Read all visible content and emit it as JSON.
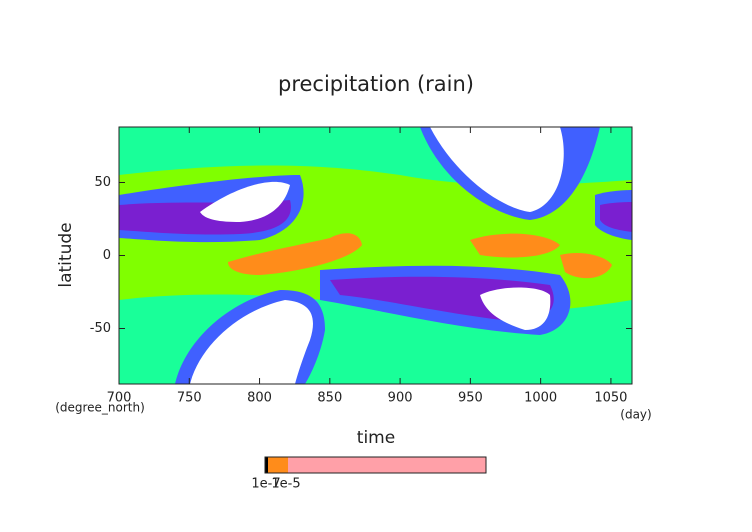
{
  "chart_data": {
    "type": "contour",
    "title": "precipitation (rain)",
    "x_label": "time",
    "x_unit": "(day)",
    "y_label": "latitude",
    "y_unit": "(degree_north)",
    "xlim": [
      700,
      1065
    ],
    "ylim": [
      -88,
      88
    ],
    "xticks": [
      700,
      750,
      800,
      850,
      900,
      950,
      1000,
      1050
    ],
    "yticks": [
      -50,
      0,
      50
    ],
    "colorbar": {
      "labels": [
        "1e-7",
        "1e-5"
      ],
      "colors": [
        "#000000",
        "#ff8c1a",
        "#ffa0a8"
      ]
    }
  }
}
